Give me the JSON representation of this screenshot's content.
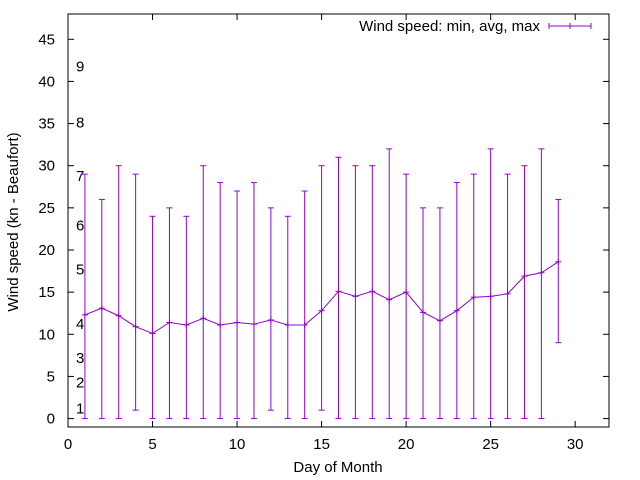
{
  "chart_data": {
    "type": "line",
    "title": "",
    "xlabel": "Day of Month",
    "ylabel": "Wind speed (kn - Beaufort)",
    "xlim": [
      0,
      32
    ],
    "ylim": [
      -1,
      48
    ],
    "xticks": [
      0,
      5,
      10,
      15,
      20,
      25,
      30
    ],
    "yticks": [
      0,
      5,
      10,
      15,
      20,
      25,
      30,
      35,
      40,
      45
    ],
    "grid": false,
    "legend_position": "top-right",
    "color": "#9400d3",
    "series": [
      {
        "name": "Wind speed: min, avg, max",
        "x": [
          1,
          2,
          3,
          4,
          5,
          6,
          7,
          8,
          9,
          10,
          11,
          12,
          13,
          14,
          15,
          16,
          17,
          18,
          19,
          20,
          21,
          22,
          23,
          24,
          25,
          26,
          27,
          28,
          29
        ],
        "min": [
          0,
          0,
          0,
          1,
          0,
          0,
          0,
          0,
          0,
          0,
          0,
          1,
          0,
          0,
          1,
          0,
          0,
          0,
          0,
          0,
          0,
          0,
          0,
          0,
          0,
          0,
          0,
          0,
          9
        ],
        "avg": [
          12.3,
          13.1,
          12.2,
          10.9,
          10.1,
          11.4,
          11.1,
          11.9,
          11.1,
          11.4,
          11.2,
          11.7,
          11.1,
          11.1,
          12.8,
          15.1,
          14.5,
          15.1,
          14.1,
          15.0,
          12.6,
          11.6,
          12.8,
          14.4,
          14.5,
          14.8,
          16.9,
          17.3,
          18.6
        ],
        "max": [
          29,
          26,
          30,
          29,
          24,
          25,
          24,
          30,
          28,
          27,
          28,
          25,
          24,
          27,
          30,
          31,
          30,
          30,
          32,
          29,
          25,
          25,
          28,
          29,
          32,
          29,
          30,
          32,
          26
        ]
      }
    ],
    "beaufort_labels": [
      {
        "label": "1",
        "value": 1.2
      },
      {
        "label": "2",
        "value": 4.3
      },
      {
        "label": "3",
        "value": 7.2
      },
      {
        "label": "4",
        "value": 11.2
      },
      {
        "label": "5",
        "value": 17.7
      },
      {
        "label": "6",
        "value": 22.9
      },
      {
        "label": "7",
        "value": 28.8
      },
      {
        "label": "8",
        "value": 35.1
      },
      {
        "label": "9",
        "value": 41.8
      }
    ]
  }
}
